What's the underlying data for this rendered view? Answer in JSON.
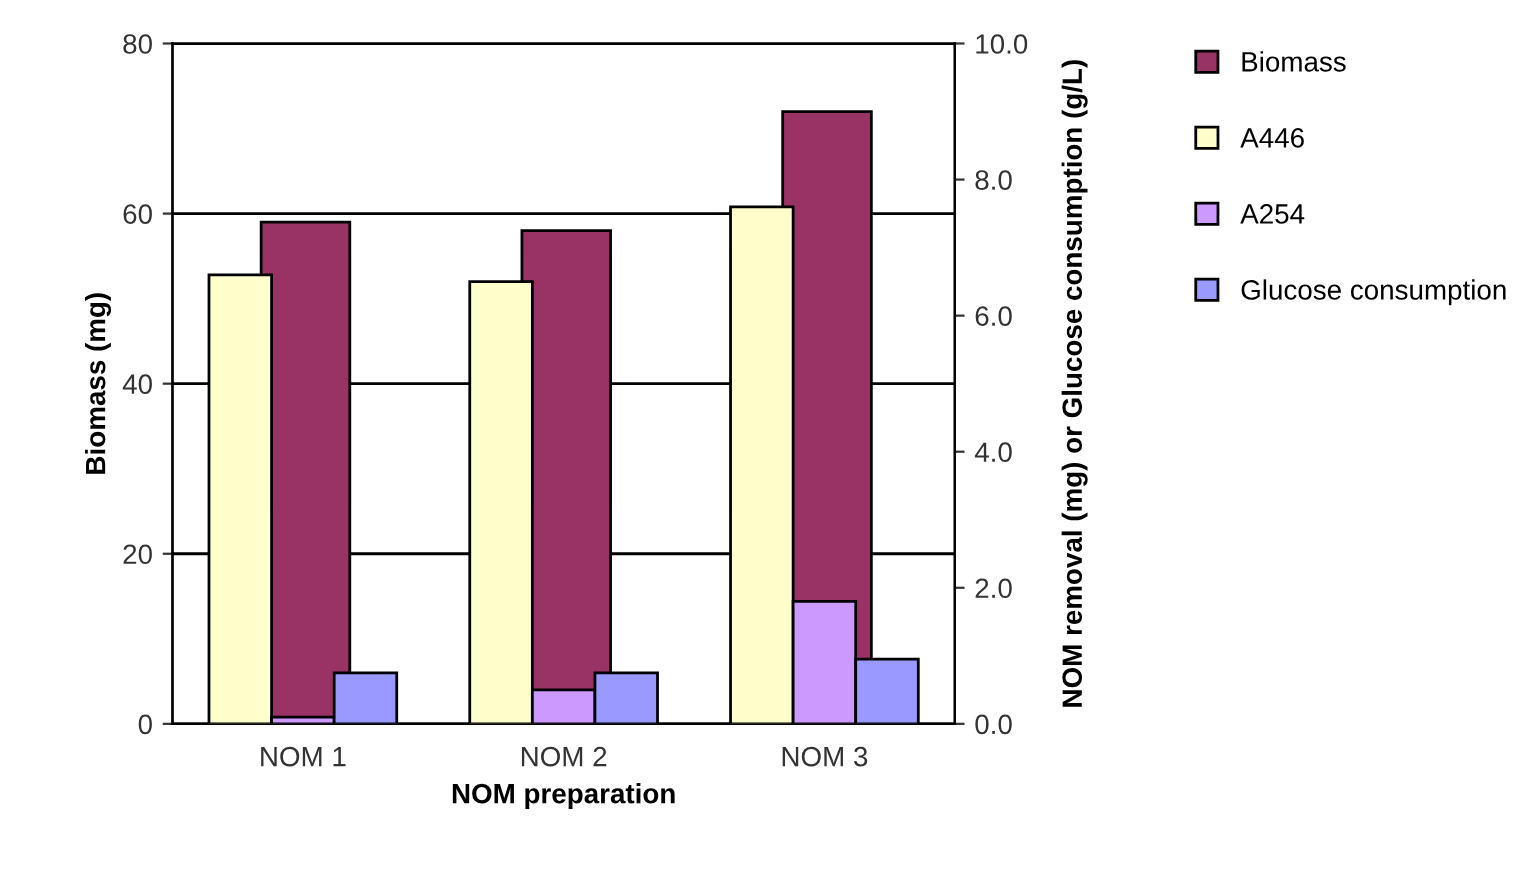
{
  "chart_data": {
    "type": "bar",
    "xlabel": "NOM preparation",
    "ylabel": "Biomass (mg)",
    "y2label": "NOM removal (mg) or Glucose consumption (g/L)",
    "categories": [
      "NOM 1",
      "NOM 2",
      "NOM 3"
    ],
    "series": [
      {
        "name": "Biomass",
        "color": "#993366",
        "values": [
          59,
          58,
          72
        ]
      },
      {
        "name": "A446",
        "color": "#ffffcc",
        "values": [
          6.6,
          6.5,
          7.6
        ],
        "axis": "y2"
      },
      {
        "name": "A254",
        "color": "#cc99ff",
        "values": [
          0.1,
          0.5,
          1.8
        ],
        "axis": "y2"
      },
      {
        "name": "Glucose consumption",
        "color": "#9999ff",
        "values": [
          0.75,
          0.75,
          0.95
        ],
        "axis": "y2"
      }
    ],
    "ylim": [
      0,
      80
    ],
    "yticks": [
      0,
      20,
      40,
      60,
      80
    ],
    "y2lim": [
      0,
      10
    ],
    "y2ticks": [
      {
        "value": 0,
        "label": "0.0"
      },
      {
        "value": 2,
        "label": "2.0"
      },
      {
        "value": 4,
        "label": "4.0"
      },
      {
        "value": 6,
        "label": "6.0"
      },
      {
        "value": 8,
        "label": "8.0"
      },
      {
        "value": 10,
        "label": "10.0"
      }
    ],
    "grid": "y",
    "legend": "right"
  }
}
